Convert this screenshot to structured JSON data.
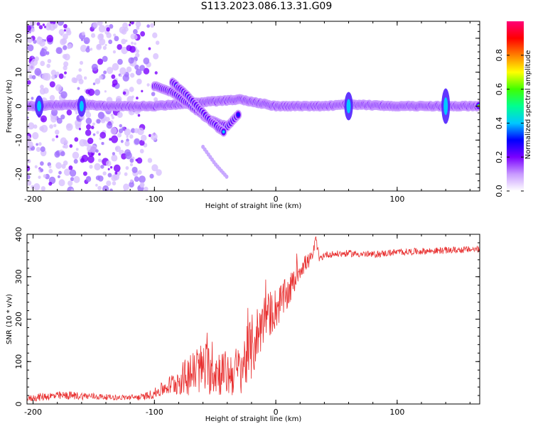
{
  "title": "S113.2023.086.13.31.G09",
  "chart_data": [
    {
      "type": "heatmap",
      "xlabel": "Height of straight line (km)",
      "ylabel": "Frequency (Hz)",
      "xlim": [
        -205,
        168
      ],
      "ylim": [
        -25,
        25
      ],
      "xticks": [
        -200,
        -100,
        0,
        100
      ],
      "xtick_labels": [
        "-200",
        "-100",
        "0",
        "100"
      ],
      "yticks": [
        -20,
        -10,
        0,
        10,
        20
      ],
      "ytick_labels": [
        "-20",
        "-10",
        "0",
        "10",
        "20"
      ],
      "colorbar": {
        "label": "Normalized spectral amplitude",
        "range": [
          0,
          1
        ],
        "ticks": [
          0.0,
          0.2,
          0.4,
          0.6,
          0.8
        ],
        "tick_labels": [
          "0.0",
          "0.2",
          "0.4",
          "0.6",
          "0.8"
        ],
        "colormap": [
          "#ffffff",
          "#c89aff",
          "#7a00ff",
          "#0000ff",
          "#00c8ff",
          "#00ff90",
          "#40ff00",
          "#ffff00",
          "#ff8000",
          "#ff0000",
          "#ff0078"
        ]
      },
      "ridges": [
        {
          "name": "carrier",
          "x": [
            -205,
            -160,
            -140,
            -100,
            -30,
            0,
            40,
            60,
            100,
            130,
            168
          ],
          "y": [
            0,
            0.5,
            0,
            0,
            2,
            0,
            0,
            0.5,
            0,
            0,
            0
          ]
        },
        {
          "name": "descending branch 1",
          "x": [
            -100,
            -85,
            -70,
            -55,
            -40,
            -30
          ],
          "y": [
            6,
            4,
            0,
            -4,
            -6,
            -2
          ]
        },
        {
          "name": "descending branch 2",
          "x": [
            -85,
            -70,
            -55,
            -42
          ],
          "y": [
            7,
            2,
            -4,
            -8
          ]
        },
        {
          "name": "faint tail",
          "x": [
            -60,
            -50,
            -40
          ],
          "y": [
            -12,
            -17,
            -21
          ]
        }
      ]
    },
    {
      "type": "line",
      "xlabel": "Height of straight line (km)",
      "ylabel": "SNR (10 * v/v)",
      "xlim": [
        -205,
        168
      ],
      "ylim": [
        0,
        400
      ],
      "xticks": [
        -200,
        -100,
        0,
        100
      ],
      "xtick_labels": [
        "-200",
        "-100",
        "0",
        "100"
      ],
      "yticks": [
        0,
        100,
        200,
        300,
        400
      ],
      "ytick_labels": [
        "0",
        "100",
        "200",
        "300",
        "400"
      ],
      "series": [
        {
          "name": "SNR",
          "color": "#e83030",
          "x": [
            -205,
            -190,
            -170,
            -150,
            -130,
            -110,
            -100,
            -90,
            -80,
            -70,
            -60,
            -50,
            -40,
            -30,
            -20,
            -10,
            0,
            10,
            20,
            30,
            33,
            36,
            40,
            60,
            80,
            100,
            120,
            140,
            168
          ],
          "y": [
            12,
            18,
            20,
            18,
            15,
            16,
            25,
            40,
            55,
            70,
            85,
            80,
            70,
            80,
            130,
            200,
            225,
            260,
            320,
            345,
            390,
            340,
            352,
            355,
            352,
            358,
            360,
            362,
            365
          ],
          "noise": [
            8,
            10,
            10,
            8,
            6,
            8,
            12,
            20,
            35,
            50,
            65,
            60,
            55,
            60,
            80,
            60,
            50,
            40,
            25,
            15,
            10,
            10,
            8,
            8,
            8,
            8,
            8,
            8,
            8
          ]
        }
      ]
    }
  ]
}
